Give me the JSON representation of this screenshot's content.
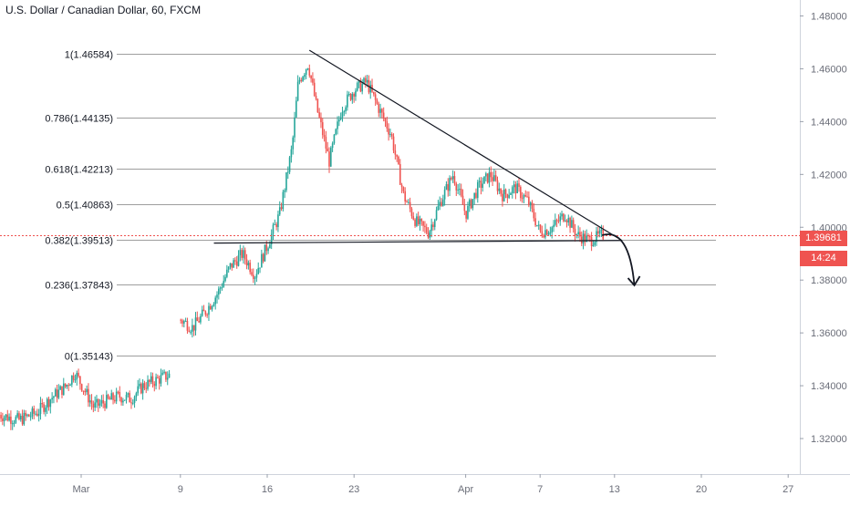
{
  "title": "U.S. Dollar / Canadian Dollar, 60, FXCM",
  "current_price": "1.39681",
  "countdown": "14:24",
  "colors": {
    "up": "#26a69a",
    "down": "#ef5350",
    "fib_line": "#9e9e9e",
    "trendline": "#131722",
    "axis_text": "#6a6d78",
    "price_dash": "#ef5350"
  },
  "chart_data": {
    "type": "candlestick",
    "y_range": [
      1.31,
      1.49
    ],
    "y_ticks": [
      "1.48000",
      "1.46000",
      "1.44000",
      "1.42000",
      "1.40000",
      "1.38000",
      "1.36000",
      "1.34000",
      "1.32000"
    ],
    "y_tick_values": [
      1.48,
      1.46,
      1.44,
      1.42,
      1.4,
      1.38,
      1.36,
      1.34,
      1.32
    ],
    "x_ticks": [
      {
        "label": "Mar",
        "day": 1
      },
      {
        "label": "9",
        "day": 9
      },
      {
        "label": "16",
        "day": 16
      },
      {
        "label": "23",
        "day": 23
      },
      {
        "label": "Apr",
        "day": 32
      },
      {
        "label": "7",
        "day": 38
      },
      {
        "label": "13",
        "day": 44
      },
      {
        "label": "20",
        "day": 51
      },
      {
        "label": "27",
        "day": 58
      }
    ],
    "fib_levels": [
      {
        "label": "1(1.46584)",
        "value": 1.46584
      },
      {
        "label": "0.786(1.44135)",
        "value": 1.44135
      },
      {
        "label": "0.618(1.42213)",
        "value": 1.42213
      },
      {
        "label": "0.5(1.40863)",
        "value": 1.40863
      },
      {
        "label": "0.382(1.39513)",
        "value": 1.39513
      },
      {
        "label": "0.236(1.37843)",
        "value": 1.37843
      },
      {
        "label": "0(1.35143)",
        "value": 1.35143
      }
    ],
    "price_path": [
      [
        -5.6,
        1.329
      ],
      [
        -4,
        1.327
      ],
      [
        -2.5,
        1.33
      ],
      [
        -1.5,
        1.335
      ],
      [
        -0.2,
        1.34
      ],
      [
        0.5,
        1.345
      ],
      [
        1.3,
        1.338
      ],
      [
        2,
        1.332
      ],
      [
        3,
        1.334
      ],
      [
        4,
        1.336
      ],
      [
        5,
        1.335
      ],
      [
        6,
        1.34
      ],
      [
        7.5,
        1.343
      ],
      [
        8.1,
        1.344
      ],
      [
        9.0,
        1.365
      ],
      [
        10,
        1.362
      ],
      [
        11,
        1.368
      ],
      [
        12,
        1.375
      ],
      [
        13,
        1.385
      ],
      [
        14,
        1.39
      ],
      [
        15,
        1.382
      ],
      [
        16,
        1.393
      ],
      [
        17,
        1.405
      ],
      [
        18,
        1.43
      ],
      [
        18.5,
        1.455
      ],
      [
        19.3,
        1.462
      ],
      [
        20,
        1.445
      ],
      [
        21,
        1.425
      ],
      [
        22,
        1.445
      ],
      [
        23,
        1.452
      ],
      [
        24,
        1.455
      ],
      [
        25,
        1.445
      ],
      [
        26,
        1.435
      ],
      [
        27,
        1.412
      ],
      [
        28,
        1.402
      ],
      [
        29,
        1.398
      ],
      [
        30,
        1.41
      ],
      [
        31,
        1.42
      ],
      [
        32,
        1.405
      ],
      [
        33,
        1.415
      ],
      [
        34,
        1.42
      ],
      [
        35,
        1.412
      ],
      [
        36,
        1.415
      ],
      [
        37,
        1.41
      ],
      [
        38,
        1.398
      ],
      [
        39,
        1.4
      ],
      [
        40,
        1.405
      ],
      [
        41,
        1.397
      ],
      [
        42,
        1.395
      ],
      [
        43,
        1.397
      ]
    ],
    "trendlines": [
      {
        "name": "descending",
        "from": [
          19.4,
          1.467
        ],
        "to": [
          44.6,
          1.395
        ]
      },
      {
        "name": "support",
        "from": [
          11.7,
          1.394
        ],
        "to": [
          44.6,
          1.395
        ]
      }
    ],
    "arrow_forecast": [
      [
        43,
        1.397
      ],
      [
        44.3,
        1.395
      ],
      [
        45.6,
        1.378
      ]
    ]
  }
}
